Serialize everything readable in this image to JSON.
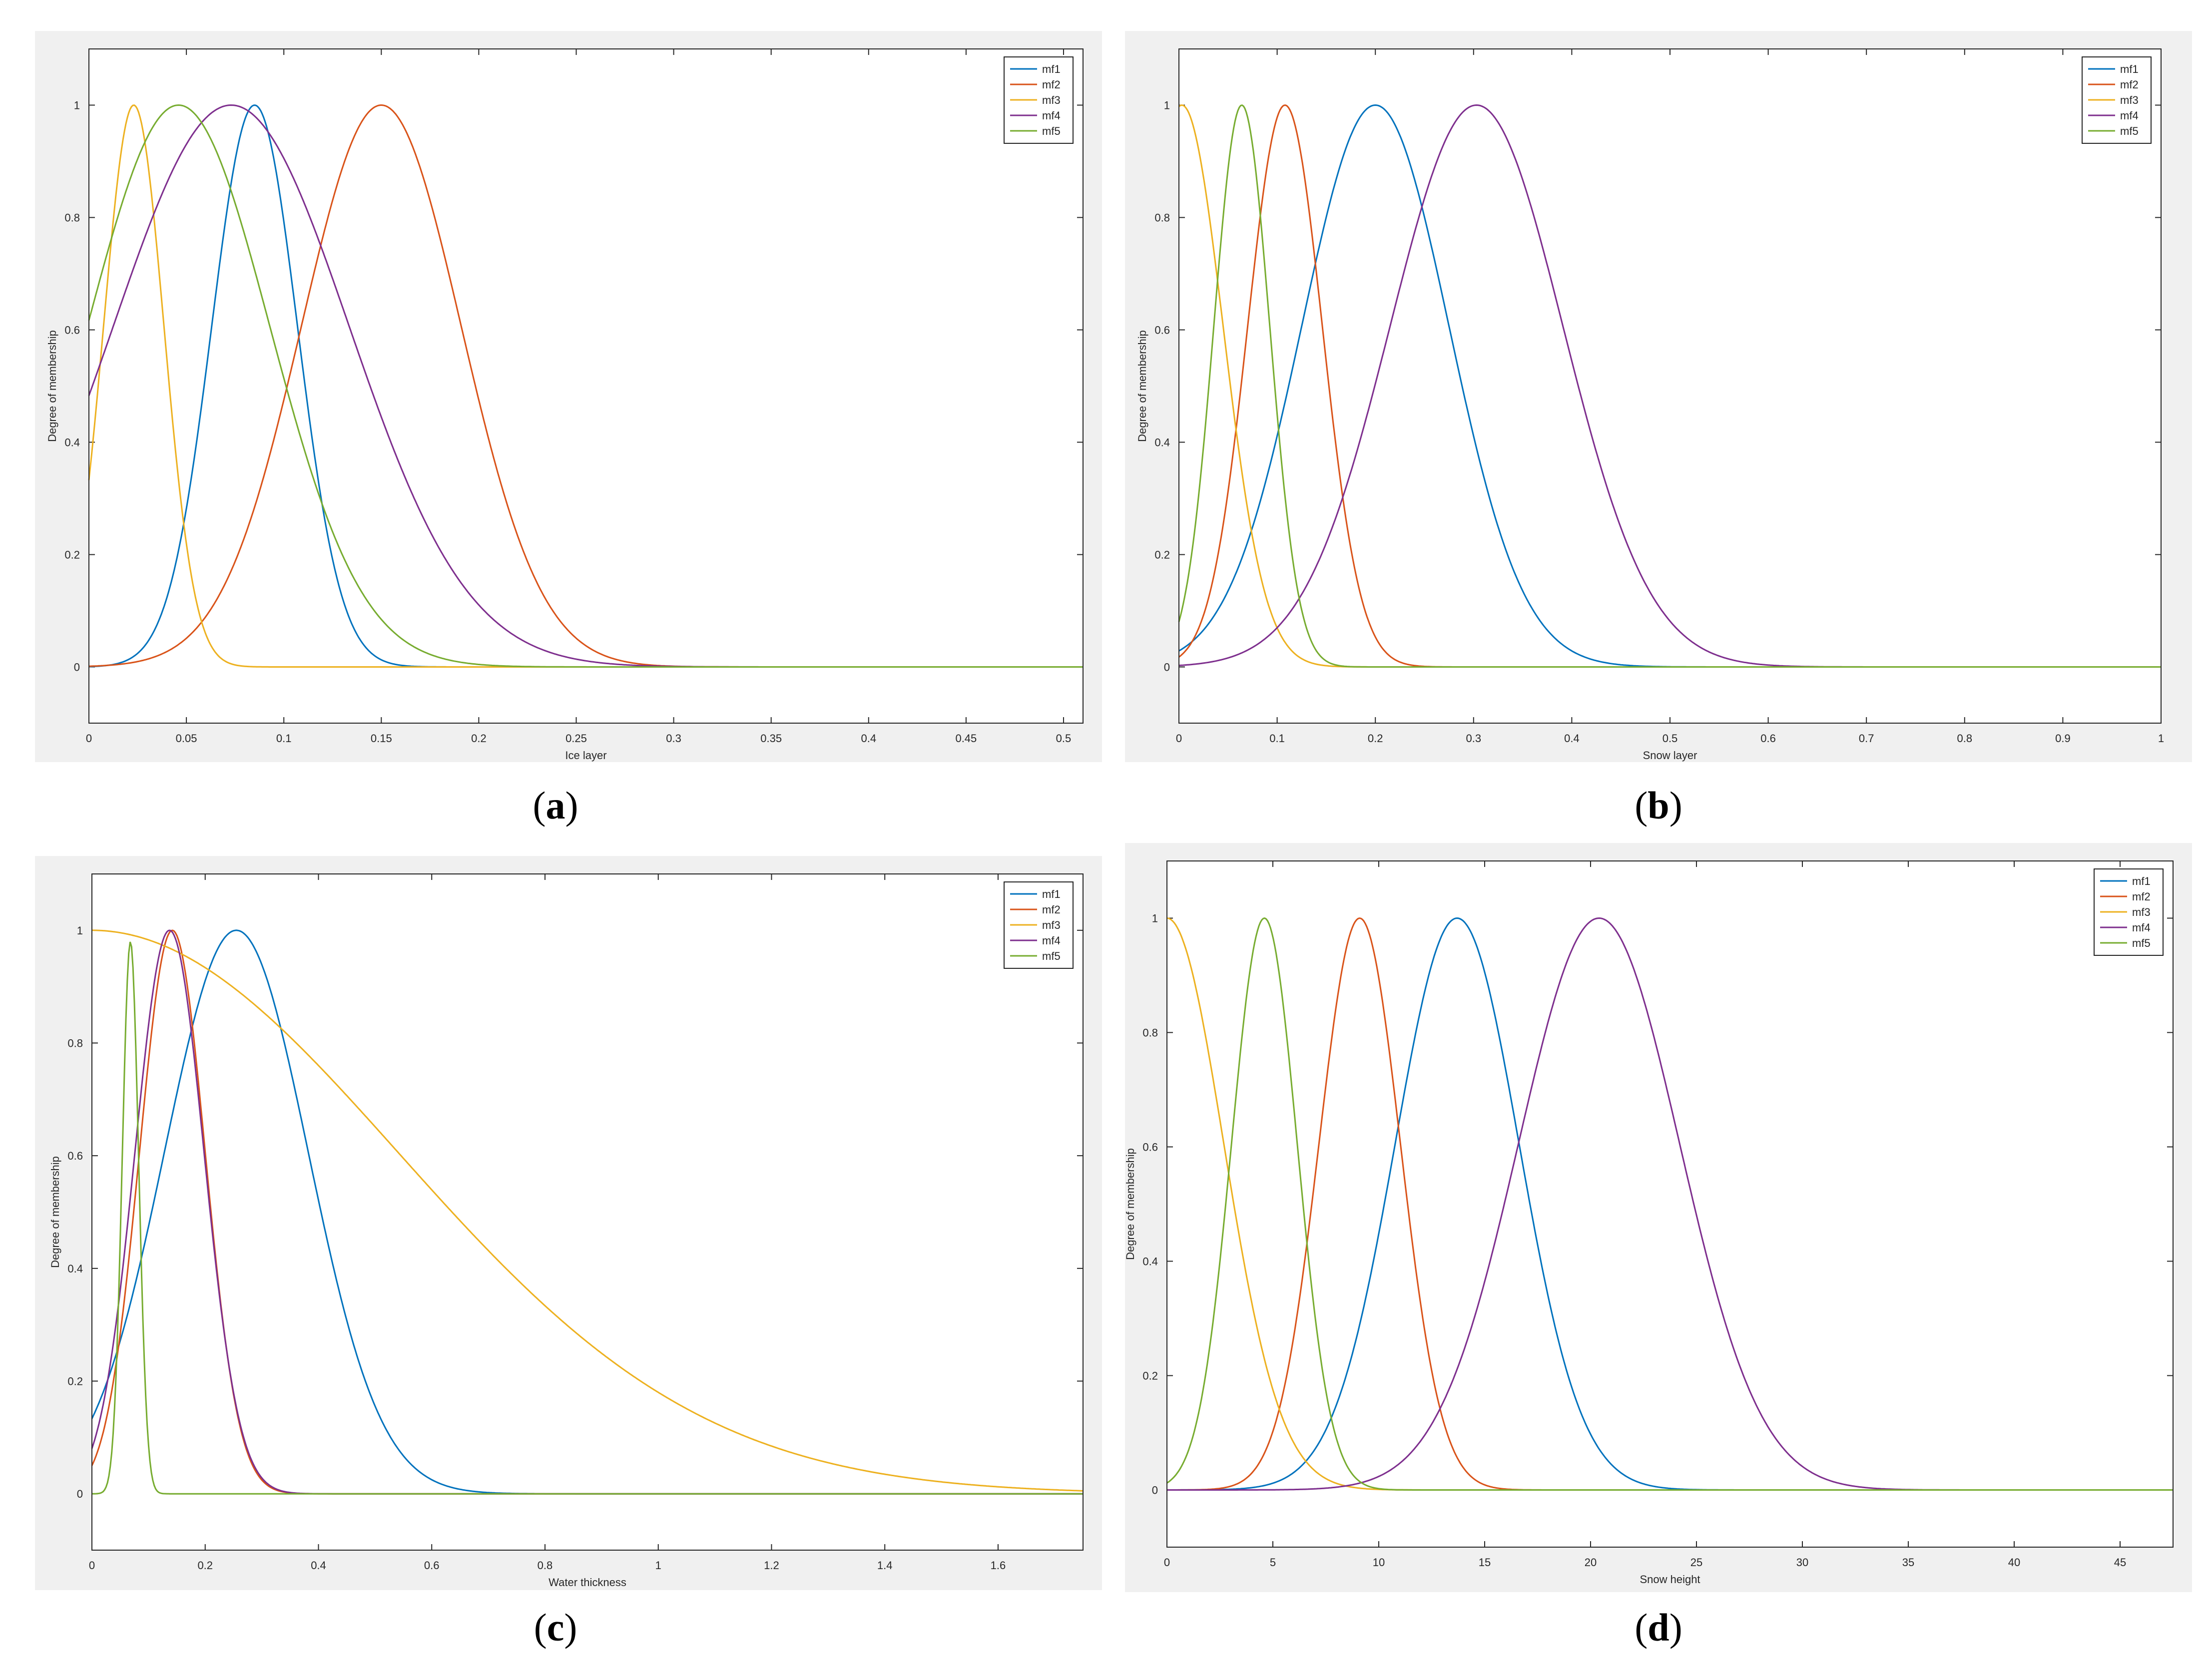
{
  "colors": {
    "mf1": "#0072bd",
    "mf2": "#d95319",
    "mf3": "#edb120",
    "mf4": "#7e2f8e",
    "mf5": "#77ac30",
    "panel_bg": "#f0f0f0",
    "axes_bg": "#ffffff"
  },
  "chart_data": [
    {
      "type": "line",
      "panel_label": "a",
      "xlabel": "Ice layer",
      "ylabel": "Degree of membership",
      "xlim": [
        0,
        0.51
      ],
      "ylim": [
        -0.1,
        1.1
      ],
      "xticks": [
        0,
        0.05,
        0.1,
        0.15,
        0.2,
        0.25,
        0.3,
        0.35,
        0.4,
        0.45,
        0.5
      ],
      "yticks": [
        0,
        0.2,
        0.4,
        0.6,
        0.8,
        1
      ],
      "grid": false,
      "legend_position": "top-right",
      "series": [
        {
          "name": "mf1",
          "color": "#0072bd",
          "shape": "gaussian",
          "center": 0.085,
          "sigma": 0.022
        },
        {
          "name": "mf2",
          "color": "#d95319",
          "shape": "gaussian",
          "center": 0.15,
          "sigma": 0.041
        },
        {
          "name": "mf3",
          "color": "#edb120",
          "shape": "gaussian",
          "center": 0.023,
          "sigma": 0.0155
        },
        {
          "name": "mf4",
          "color": "#7e2f8e",
          "shape": "gaussian",
          "center": 0.073,
          "sigma": 0.0605
        },
        {
          "name": "mf5",
          "color": "#77ac30",
          "shape": "gaussian",
          "center": 0.046,
          "sigma": 0.0468
        }
      ]
    },
    {
      "type": "line",
      "panel_label": "b",
      "xlabel": "Snow layer",
      "ylabel": "Degree of membership",
      "xlim": [
        0,
        1
      ],
      "ylim": [
        -0.1,
        1.1
      ],
      "xticks": [
        0,
        0.1,
        0.2,
        0.3,
        0.4,
        0.5,
        0.6,
        0.7,
        0.8,
        0.9,
        1
      ],
      "yticks": [
        0,
        0.2,
        0.4,
        0.6,
        0.8,
        1
      ],
      "grid": false,
      "legend_position": "top-right",
      "series": [
        {
          "name": "mf1",
          "color": "#0072bd",
          "shape": "gaussian",
          "center": 0.2,
          "sigma": 0.075
        },
        {
          "name": "mf2",
          "color": "#d95319",
          "shape": "gaussian",
          "center": 0.108,
          "sigma": 0.038
        },
        {
          "name": "mf3",
          "color": "#edb120",
          "shape": "gaussian",
          "center": 0.003,
          "sigma": 0.042
        },
        {
          "name": "mf4",
          "color": "#7e2f8e",
          "shape": "gaussian",
          "center": 0.303,
          "sigma": 0.088
        },
        {
          "name": "mf5",
          "color": "#77ac30",
          "shape": "gaussian",
          "center": 0.064,
          "sigma": 0.0285
        }
      ]
    },
    {
      "type": "line",
      "panel_label": "c",
      "xlabel": "Water thickness",
      "ylabel": "Degree of membership",
      "xlim": [
        0,
        1.75
      ],
      "ylim": [
        -0.1,
        1.1
      ],
      "xticks": [
        0,
        0.2,
        0.4,
        0.6,
        0.8,
        1,
        1.2,
        1.4,
        1.6
      ],
      "yticks": [
        0,
        0.2,
        0.4,
        0.6,
        0.8,
        1
      ],
      "grid": false,
      "legend_position": "top-right",
      "series": [
        {
          "name": "mf1",
          "color": "#0072bd",
          "shape": "gaussian",
          "center": 0.255,
          "sigma": 0.127
        },
        {
          "name": "mf2",
          "color": "#d95319",
          "shape": "gaussian",
          "center": 0.142,
          "sigma": 0.058
        },
        {
          "name": "mf3",
          "color": "#edb120",
          "shape": "gaussian",
          "center": 0,
          "sigma": 0.54
        },
        {
          "name": "mf4",
          "color": "#7e2f8e",
          "shape": "gaussian",
          "center": 0.137,
          "sigma": 0.061
        },
        {
          "name": "mf5",
          "color": "#77ac30",
          "shape": "gaussian",
          "center": 0.068,
          "sigma": 0.0145,
          "peak": 0.98
        }
      ]
    },
    {
      "type": "line",
      "panel_label": "d",
      "xlabel": "Snow height",
      "ylabel": "Degree of membership",
      "xlim": [
        0,
        47.5
      ],
      "ylim": [
        -0.1,
        1.1
      ],
      "xticks": [
        0,
        5,
        10,
        15,
        20,
        25,
        30,
        35,
        40,
        45
      ],
      "yticks": [
        0,
        0.2,
        0.4,
        0.6,
        0.8,
        1
      ],
      "grid": false,
      "legend_position": "top-right",
      "series": [
        {
          "name": "mf1",
          "color": "#0072bd",
          "shape": "gaussian",
          "center": 13.7,
          "sigma": 2.92
        },
        {
          "name": "mf2",
          "color": "#d95319",
          "shape": "gaussian",
          "center": 9.1,
          "sigma": 1.92
        },
        {
          "name": "mf3",
          "color": "#edb120",
          "shape": "gaussian",
          "center": 0,
          "sigma": 2.68
        },
        {
          "name": "mf4",
          "color": "#7e2f8e",
          "shape": "gaussian",
          "center": 20.4,
          "sigma": 3.8
        },
        {
          "name": "mf5",
          "color": "#77ac30",
          "shape": "gaussian",
          "center": 4.6,
          "sigma": 1.55
        }
      ]
    }
  ]
}
